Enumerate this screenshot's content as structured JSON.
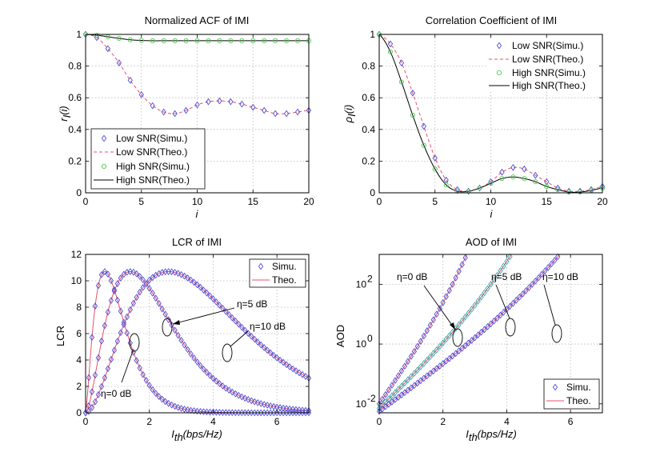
{
  "chart_data": [
    {
      "type": "line",
      "title": "Normalized ACF of IMI",
      "xlabel": "i",
      "ylabel_main": "r",
      "ylabel_sub": "I",
      "ylabel_paren": "(i)",
      "xlim": [
        0,
        20
      ],
      "ylim": [
        0,
        1
      ],
      "xticks": [
        "0",
        "5",
        "10",
        "15",
        "20"
      ],
      "yticks": [
        "0",
        "0.2",
        "0.4",
        "0.6",
        "0.8",
        "1"
      ],
      "legend_position": "bottom-left",
      "legend": [
        "Low SNR(Simu.)",
        "Low SNR(Theo.)",
        "High SNR(Simu.)",
        "High SNR(Theo.)"
      ],
      "x": [
        0,
        1,
        2,
        3,
        4,
        5,
        6,
        7,
        8,
        9,
        10,
        11,
        12,
        13,
        14,
        15,
        16,
        17,
        18,
        19,
        20
      ],
      "series": [
        {
          "name": "Low SNR(Simu.)",
          "style": "diamond",
          "color": "#4f4fd8",
          "values": [
            1.0,
            0.98,
            0.91,
            0.82,
            0.71,
            0.62,
            0.55,
            0.51,
            0.5,
            0.52,
            0.555,
            0.575,
            0.58,
            0.575,
            0.56,
            0.54,
            0.52,
            0.5,
            0.5,
            0.51,
            0.52
          ]
        },
        {
          "name": "Low SNR(Theo.)",
          "style": "dashed",
          "color": "#e8506a",
          "values": [
            1.0,
            0.98,
            0.91,
            0.82,
            0.71,
            0.62,
            0.55,
            0.51,
            0.5,
            0.52,
            0.555,
            0.575,
            0.58,
            0.575,
            0.56,
            0.54,
            0.52,
            0.5,
            0.5,
            0.51,
            0.52
          ]
        },
        {
          "name": "High SNR(Simu.)",
          "style": "circle",
          "color": "#4fc94f",
          "values": [
            1.0,
            0.995,
            0.985,
            0.975,
            0.966,
            0.962,
            0.96,
            0.96,
            0.96,
            0.96,
            0.96,
            0.96,
            0.96,
            0.96,
            0.96,
            0.96,
            0.96,
            0.96,
            0.96,
            0.96,
            0.96
          ]
        },
        {
          "name": "High SNR(Theo.)",
          "style": "solid",
          "color": "#000000",
          "values": [
            1.0,
            0.995,
            0.985,
            0.975,
            0.966,
            0.962,
            0.96,
            0.96,
            0.96,
            0.96,
            0.96,
            0.96,
            0.96,
            0.96,
            0.96,
            0.96,
            0.96,
            0.96,
            0.96,
            0.96,
            0.96
          ]
        }
      ]
    },
    {
      "type": "line",
      "title": "Correlation Coefficient of IMI",
      "xlabel": "i",
      "ylabel_main": "ρ",
      "ylabel_sub": "I",
      "ylabel_paren": "(i)",
      "xlim": [
        0,
        20
      ],
      "ylim": [
        0,
        1
      ],
      "xticks": [
        "0",
        "5",
        "10",
        "15",
        "20"
      ],
      "yticks": [
        "0",
        "0.2",
        "0.4",
        "0.6",
        "0.8",
        "1"
      ],
      "legend_position": "top-right",
      "legend": [
        "Low SNR(Simu.)",
        "Low SNR(Theo.)",
        "High SNR(Simu.)",
        "High SNR(Theo.)"
      ],
      "x": [
        0,
        1,
        2,
        3,
        4,
        5,
        6,
        7,
        8,
        9,
        10,
        11,
        12,
        13,
        14,
        15,
        16,
        17,
        18,
        19,
        20
      ],
      "series": [
        {
          "name": "Low SNR(Simu.)",
          "style": "diamond",
          "color": "#4f4fd8",
          "values": [
            1.0,
            0.94,
            0.82,
            0.63,
            0.42,
            0.22,
            0.08,
            0.02,
            0.01,
            0.03,
            0.07,
            0.13,
            0.16,
            0.15,
            0.11,
            0.07,
            0.03,
            0.01,
            0.01,
            0.02,
            0.04
          ]
        },
        {
          "name": "Low SNR(Theo.)",
          "style": "dashed",
          "color": "#e8506a",
          "values": [
            1.0,
            0.94,
            0.82,
            0.63,
            0.42,
            0.22,
            0.08,
            0.02,
            0.01,
            0.03,
            0.07,
            0.13,
            0.16,
            0.15,
            0.11,
            0.07,
            0.03,
            0.01,
            0.01,
            0.02,
            0.04
          ]
        },
        {
          "name": "High SNR(Simu.)",
          "style": "circle",
          "color": "#4fc94f",
          "values": [
            1.0,
            0.89,
            0.7,
            0.49,
            0.3,
            0.15,
            0.05,
            0.01,
            0.01,
            0.03,
            0.06,
            0.09,
            0.1,
            0.09,
            0.07,
            0.04,
            0.02,
            0.005,
            0.005,
            0.015,
            0.03
          ]
        },
        {
          "name": "High SNR(Theo.)",
          "style": "solid",
          "color": "#000000",
          "values": [
            1.0,
            0.89,
            0.7,
            0.49,
            0.3,
            0.15,
            0.05,
            0.01,
            0.01,
            0.03,
            0.06,
            0.09,
            0.1,
            0.09,
            0.07,
            0.04,
            0.02,
            0.005,
            0.005,
            0.015,
            0.03
          ]
        }
      ]
    },
    {
      "type": "line",
      "title": "LCR of IMI",
      "xlabel_main": "I",
      "xlabel_sub": "th",
      "xlabel_rest": "(bps/Hz)",
      "ylabel": "LCR",
      "xlim": [
        0,
        7
      ],
      "ylim": [
        0,
        12
      ],
      "xticks": [
        "0",
        "2",
        "4",
        "6"
      ],
      "yticks": [
        "0",
        "2",
        "4",
        "6",
        "8",
        "10",
        "12"
      ],
      "legend_position": "top-right",
      "legend": [
        "Simu.",
        "Theo."
      ],
      "curves": [
        {
          "label": "η=0 dB",
          "peak_x": 0.6,
          "peak_y": 10.7,
          "shape": 1.45
        },
        {
          "label": "η=5 dB",
          "peak_x": 1.4,
          "peak_y": 10.7,
          "shape": 1.75
        },
        {
          "label": "η=10 dB",
          "peak_x": 2.6,
          "peak_y": 10.7,
          "shape": 2.0
        }
      ],
      "annotations": [
        "η=0 dB",
        "η=5 dB",
        "η=10 dB"
      ],
      "series_styles": {
        "simu_color": "#4f4fd8",
        "theo_color": "#e8506a"
      }
    },
    {
      "type": "line",
      "title": "AOD of IMI",
      "xlabel_main": "I",
      "xlabel_sub": "th",
      "xlabel_rest": "(bps/Hz)",
      "ylabel": "AOD",
      "yscale": "log",
      "xlim": [
        0,
        7
      ],
      "ylim_log10": [
        -2.3,
        3.0
      ],
      "xticks": [
        "0",
        "2",
        "4",
        "6"
      ],
      "yticks_exponents": [
        "-2",
        "0",
        "2"
      ],
      "legend_position": "bottom-right",
      "legend": [
        "Simu.",
        "Theo."
      ],
      "curves": [
        {
          "label": "η=0 dB",
          "log10_start": -2.0,
          "rate": 1.55,
          "knee": 0.88
        },
        {
          "label": "η=5 dB",
          "log10_start": -2.15,
          "rate": 1.05,
          "knee": 0.9
        },
        {
          "label": "η=10 dB",
          "log10_start": -2.25,
          "rate": 0.78,
          "knee": 0.92
        }
      ],
      "annotations": [
        "η=0 dB",
        "η=5 dB",
        "η=10 dB"
      ],
      "series_styles": {
        "simu_color": "#4f4fd8",
        "simu_alt_color": "#3aa8a8",
        "theo_color": "#e8506a"
      }
    }
  ]
}
